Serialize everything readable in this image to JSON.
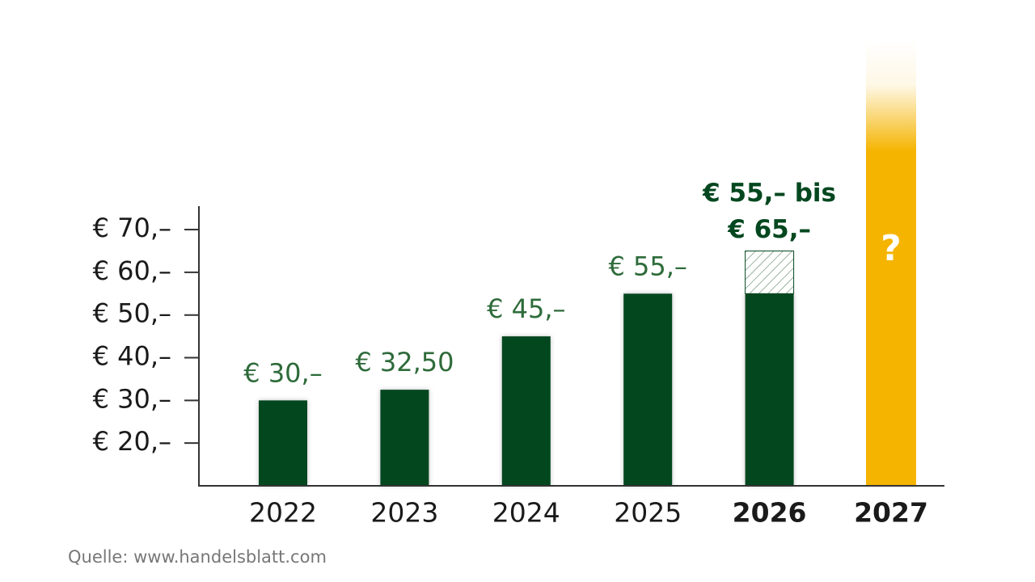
{
  "chart_data": {
    "type": "bar",
    "categories": [
      "2022",
      "2023",
      "2024",
      "2025",
      "2026",
      "2027"
    ],
    "bold": [
      false,
      false,
      false,
      false,
      true,
      true
    ],
    "values": [
      30,
      32.5,
      45,
      55,
      55,
      null
    ],
    "value_labels": [
      "€ 30,–",
      "€ 32,50",
      "€ 45,–",
      "€ 55,–",
      null,
      null
    ],
    "color": "#03471f",
    "label_color": "#2e6b3a",
    "ylim": [
      10,
      75.5
    ],
    "yticks": [
      {
        "value": 20,
        "label": "€ 20,–"
      },
      {
        "value": 30,
        "label": "€ 30,–"
      },
      {
        "value": 40,
        "label": "€ 40,–"
      },
      {
        "value": 50,
        "label": "€ 50,–"
      },
      {
        "value": 60,
        "label": "€ 60,–"
      },
      {
        "value": 70,
        "label": "€ 70,–"
      }
    ],
    "estimate": {
      "category": "2026",
      "low": 55,
      "high": 65,
      "label_lines": [
        "€ 55,– bis",
        "€ 65,–"
      ],
      "color": "#03471f"
    },
    "unknown": {
      "category": "2027",
      "label": "?",
      "color": "#f5b400"
    }
  },
  "source": "Quelle: www.handelsblatt.com"
}
